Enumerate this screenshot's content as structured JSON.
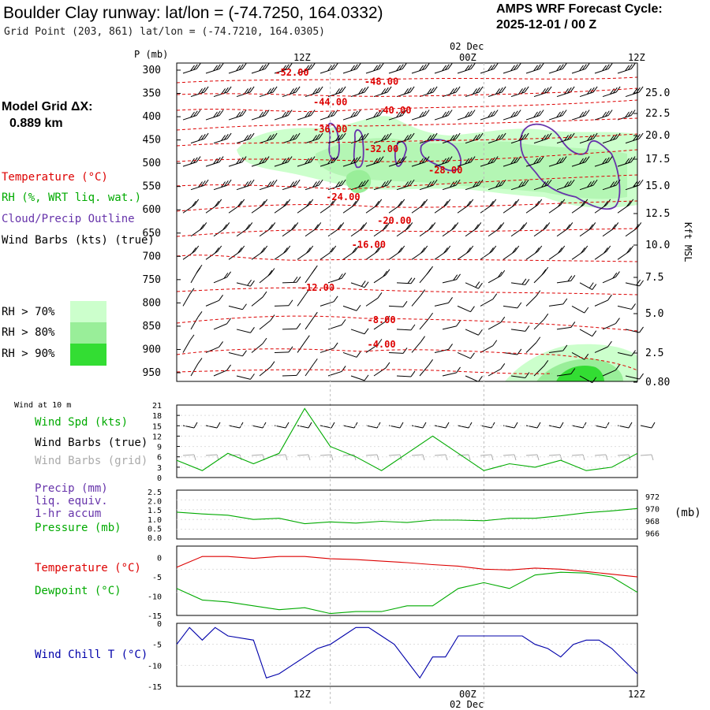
{
  "header": {
    "title": "Boulder Clay runway:  lat/lon = (-74.7250, 164.0332)",
    "subtitle": "Grid Point (203, 861) lat/lon = (-74.7210, 164.0305)",
    "forecast_label": "AMPS WRF Forecast Cycle:",
    "forecast_cycle": "2025-12-01 / 00  Z"
  },
  "model_grid": {
    "label": "Model Grid ΔX:",
    "value": "0.889 km"
  },
  "colors": {
    "temperature": "#dd0000",
    "rh_text": "#00aa00",
    "cloud": "#6633aa",
    "rh70": "#ccffcc",
    "rh80": "#99ee99",
    "rh90": "#33dd33",
    "wind_chill": "#0000aa",
    "barbs_grid": "#aaaaaa",
    "pressure_line": "#00aa00"
  },
  "legend": {
    "temperature": "Temperature (°C)",
    "rh": "RH (%, WRT liq. wat.)",
    "cloud": "Cloud/Precip Outline",
    "barbs": "Wind Barbs (kts) (true)",
    "rh70": "RH > 70%",
    "rh80": "RH > 80%",
    "rh90": "RH > 90%"
  },
  "time_axis": {
    "top_date": "02 Dec",
    "ticks": [
      "12Z",
      "00Z",
      "12Z"
    ]
  },
  "left_labels": {
    "wind_at_10m": "Wind at 10 m",
    "wind_spd": "Wind Spd (kts)",
    "barbs_true": "Wind Barbs (true)",
    "barbs_grid": "Wind Barbs (grid)",
    "precip": "Precip (mm)",
    "liq_equiv": "liq. equiv.",
    "accum": "1-hr accum",
    "pressure": "Pressure (mb)",
    "temperature": "Temperature (°C)",
    "dewpoint": "Dewpoint (°C)",
    "wind_chill": "Wind Chill T (°C)",
    "mb_unit": "(mb)"
  },
  "chart_data": [
    {
      "type": "contour",
      "name": "vertical-cross-section",
      "ylabel": "P (mb)",
      "y2label": "Kft MSL",
      "pressure_ticks": [
        300,
        350,
        400,
        450,
        500,
        550,
        600,
        650,
        700,
        750,
        800,
        850,
        900,
        950
      ],
      "height_ticks": [
        "25.0",
        "22.5",
        "20.0",
        "17.5",
        "15.0",
        "12.5",
        "10.0",
        "7.5",
        "5.0",
        "2.5",
        "0.80"
      ],
      "temperature_contour_labels": [
        {
          "label": "-52.00",
          "hour": 9,
          "p": 312
        },
        {
          "label": "-48.00",
          "hour": 16,
          "p": 331
        },
        {
          "label": "-44.00",
          "hour": 12,
          "p": 375
        },
        {
          "label": "-40.00",
          "hour": 17,
          "p": 393
        },
        {
          "label": "-36.00",
          "hour": 12,
          "p": 434
        },
        {
          "label": "-32.00",
          "hour": 16,
          "p": 476
        },
        {
          "label": "-28.00",
          "hour": 21,
          "p": 522
        },
        {
          "label": "-24.00",
          "hour": 13,
          "p": 579
        },
        {
          "label": "-20.00",
          "hour": 17,
          "p": 630
        },
        {
          "label": "-16.00",
          "hour": 15,
          "p": 682
        },
        {
          "label": "-12.00",
          "hour": 11,
          "p": 774
        },
        {
          "label": "-8.00",
          "hour": 16,
          "p": 843
        },
        {
          "label": "-4.00",
          "hour": 16,
          "p": 896
        }
      ]
    },
    {
      "type": "line",
      "name": "wind-speed",
      "ylabel": "Wind Spd (kts)",
      "yticks": [
        0,
        3,
        6,
        9,
        12,
        15,
        18,
        21
      ],
      "ylim": [
        0,
        21
      ],
      "x_hours": [
        0,
        2,
        4,
        6,
        8,
        10,
        12,
        14,
        16,
        18,
        20,
        22,
        24,
        26,
        28,
        30,
        32,
        34,
        36
      ],
      "values": [
        5,
        2,
        7,
        4,
        7,
        20,
        9,
        6,
        2,
        7,
        12,
        7,
        2,
        4,
        3,
        5,
        2,
        3,
        7
      ]
    },
    {
      "type": "line",
      "name": "pressure",
      "ylabel": "Pressure (mb)",
      "precip_ticks": [
        "2.5",
        "2.0",
        "1.5",
        "1.0",
        "0.5",
        "0.0"
      ],
      "pressure_ticks": [
        972,
        970,
        968,
        966
      ],
      "ylim": [
        965,
        973
      ],
      "x_hours": [
        0,
        2,
        4,
        6,
        8,
        10,
        12,
        14,
        16,
        18,
        20,
        22,
        24,
        26,
        28,
        30,
        32,
        34,
        36
      ],
      "values": [
        969.4,
        969.1,
        968.9,
        968.2,
        968.4,
        967.5,
        967.8,
        967.6,
        967.9,
        967.7,
        968.1,
        968.1,
        968.0,
        968.4,
        968.4,
        968.8,
        969.3,
        969.6,
        970.0
      ]
    },
    {
      "type": "line",
      "name": "temperature-dewpoint",
      "ylabel": "Temperature (°C)",
      "yticks": [
        0,
        -5,
        -10,
        -15
      ],
      "ylim": [
        -15,
        3
      ],
      "x_hours": [
        0,
        2,
        4,
        6,
        8,
        10,
        12,
        14,
        16,
        18,
        20,
        22,
        24,
        26,
        28,
        30,
        32,
        34,
        36
      ],
      "series": [
        {
          "name": "Temperature (°C)",
          "values": [
            -2.5,
            0.3,
            0.3,
            -0.2,
            0.3,
            0.3,
            -0.3,
            -0.5,
            -0.9,
            -1.3,
            -1.8,
            -2.2,
            -3.0,
            -3.2,
            -2.7,
            -3.0,
            -3.6,
            -4.3,
            -5.0
          ]
        },
        {
          "name": "Dewpoint (°C)",
          "values": [
            -8.0,
            -11.0,
            -11.5,
            -12.5,
            -13.5,
            -13.0,
            -14.5,
            -14.0,
            -14.0,
            -12.5,
            -12.5,
            -8.0,
            -6.5,
            -8.0,
            -4.5,
            -3.8,
            -4.0,
            -5.0,
            -9.0
          ]
        }
      ]
    },
    {
      "type": "line",
      "name": "wind-chill",
      "ylabel": "Wind Chill T (°C)",
      "yticks": [
        0,
        -5,
        -10,
        -15
      ],
      "ylim": [
        -15,
        0
      ],
      "x_hours": [
        0,
        1,
        2,
        3,
        4,
        6,
        7,
        8,
        9,
        10,
        11,
        12,
        13,
        14,
        15,
        16,
        17,
        18,
        19,
        20,
        21,
        22,
        23,
        24,
        25,
        26,
        27,
        28,
        29,
        30,
        31,
        32,
        33,
        34,
        35,
        36
      ],
      "values": [
        -5,
        -1,
        -4,
        -1,
        -3,
        -4,
        -13,
        -12,
        -10,
        -8,
        -6,
        -5,
        -3,
        -1,
        -1,
        -3,
        -5,
        -9,
        -13,
        -8,
        -8,
        -3,
        -3,
        -3,
        -3,
        -3,
        -3,
        -5,
        -6,
        -8,
        -5,
        -4,
        -4,
        -6,
        -9,
        -12
      ]
    }
  ]
}
